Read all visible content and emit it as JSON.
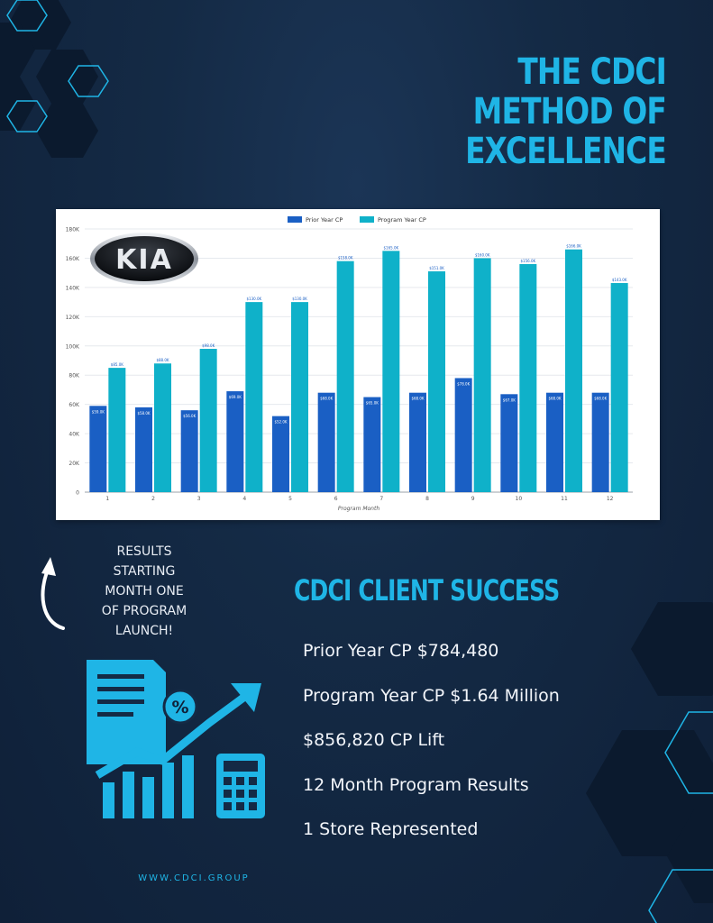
{
  "page": {
    "title_lines": [
      "THE CDCI",
      "METHOD OF",
      "EXCELLENCE"
    ],
    "results_lines": [
      "RESULTS",
      "STARTING",
      "MONTH ONE",
      "OF PROGRAM",
      "LAUNCH!"
    ],
    "success_title": "CDCI CLIENT SUCCESS",
    "stats": [
      "Prior Year CP $784,480",
      "Program Year CP $1.64 Million",
      "$856,820 CP Lift",
      "12 Month Program Results",
      "1 Store Represented"
    ],
    "footer": "WWW.CDCI.GROUP",
    "logo_text": "KIA",
    "colors": {
      "accent": "#1fb5e6",
      "prior": "#1a5fc4",
      "program": "#0fb1c9"
    }
  },
  "chart_data": {
    "type": "bar",
    "xlabel": "Program Month",
    "ylabel": "",
    "ylim": [
      0,
      180000
    ],
    "yticks": [
      "0",
      "20K",
      "40K",
      "60K",
      "80K",
      "100K",
      "120K",
      "140K",
      "160K",
      "180K"
    ],
    "legend_position": "top-center",
    "grid": true,
    "categories": [
      "1",
      "2",
      "3",
      "4",
      "5",
      "6",
      "7",
      "8",
      "9",
      "10",
      "11",
      "12"
    ],
    "series": [
      {
        "name": "Prior Year CP",
        "values": [
          59000,
          58000,
          56000,
          69000,
          52000,
          68000,
          65000,
          68000,
          78000,
          67000,
          68000,
          68000
        ]
      },
      {
        "name": "Program Year CP",
        "values": [
          85000,
          88000,
          98000,
          130000,
          130000,
          158000,
          165000,
          151000,
          160000,
          156000,
          166000,
          143000
        ]
      }
    ]
  }
}
